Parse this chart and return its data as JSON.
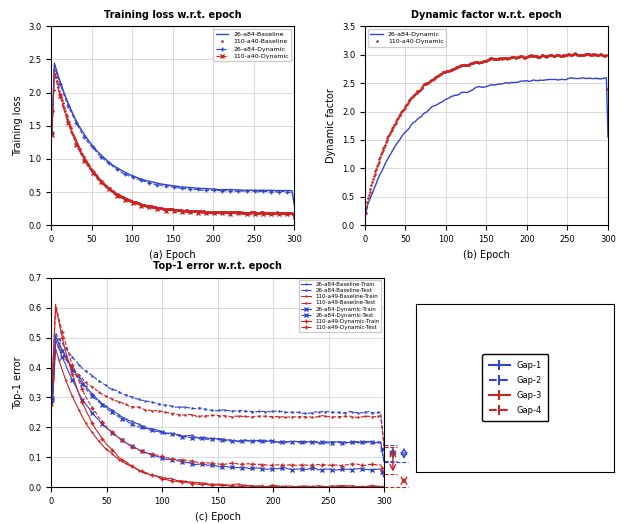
{
  "tl_title": "Training loss w.r.t. epoch",
  "tl_xlabel": "(a) Epoch",
  "tl_ylabel": "Training loss",
  "tr_title": "Dynamic factor w.r.t. epoch",
  "tr_xlabel": "(b) Epoch",
  "tr_ylabel": "Dynamic factor",
  "bot_title": "Top-1 error w.r.t. epoch",
  "bot_xlabel": "(c) Epoch",
  "bot_ylabel": "Top-1 error",
  "blue": "#3344cc",
  "red": "#cc2222",
  "gap_labels": [
    "Gap-1",
    "Gap-2",
    "Gap-3",
    "Gap-4"
  ],
  "tl_legend": [
    "26-a84-Baseline",
    "110-a40-Baseline",
    "26-a84-Dynamic",
    "110-a40-Dynamic"
  ],
  "tr_legend": [
    "26-a84-Dynamic",
    "110-a40-Dynamic"
  ],
  "bot_legend": [
    "26-a84-Baseline-Train",
    "26-a84-Baseline-Test",
    "110-a49-Baseline-Train",
    "110-a49-Baseline-Test",
    "26-a84-Dynamic-Train",
    "26-a84-Dynamic-Test",
    "110-a49-Dynamic-Train",
    "110-a49-Dynamic-Test"
  ]
}
